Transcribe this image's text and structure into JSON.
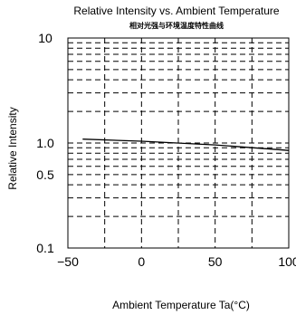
{
  "chart_data": {
    "type": "line",
    "title": "Relative Intensity vs. Ambient Temperature",
    "subtitle": "相对光强与环境温度特性曲线",
    "xlabel": "Ambient Temperature Ta(°C)",
    "ylabel": "Relative Intensity",
    "x_scale": "linear",
    "y_scale": "log",
    "xlim": [
      -50,
      100
    ],
    "ylim": [
      0.1,
      10
    ],
    "x_ticks": [
      -50,
      -25,
      0,
      25,
      50,
      75,
      100
    ],
    "x_tick_labels": [
      "−50",
      "",
      "0",
      "",
      "50",
      "",
      "100"
    ],
    "y_ticks": [
      0.1,
      0.2,
      0.3,
      0.4,
      0.5,
      0.6,
      0.7,
      0.8,
      0.9,
      1,
      2,
      3,
      4,
      5,
      6,
      7,
      8,
      9,
      10
    ],
    "y_tick_labels": [
      "0.1",
      "",
      "",
      "",
      "0.5",
      "",
      "",
      "",
      "",
      "1.0",
      "",
      "",
      "",
      "",
      "",
      "",
      "",
      "",
      "10"
    ],
    "grid": true,
    "series": [
      {
        "x": [
          -40,
          0,
          50,
          100
        ],
        "y": [
          1.09,
          1.04,
          0.96,
          0.85
        ]
      }
    ]
  }
}
